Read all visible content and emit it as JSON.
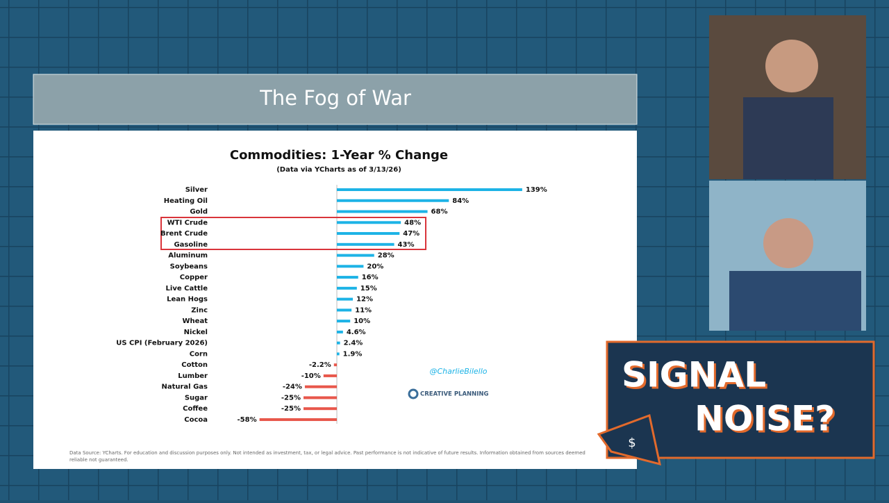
{
  "header": {
    "title": "The Fog of War"
  },
  "chart_data": {
    "type": "bar",
    "orientation": "horizontal",
    "title": "Commodities: 1-Year % Change",
    "subtitle": "(Data via YCharts as of 3/13/26)",
    "categories": [
      "Silver",
      "Heating Oil",
      "Gold",
      "WTI Crude",
      "Brent Crude",
      "Gasoline",
      "Aluminum",
      "Soybeans",
      "Copper",
      "Live Cattle",
      "Lean Hogs",
      "Zinc",
      "Wheat",
      "Nickel",
      "US CPI (February 2026)",
      "Corn",
      "Cotton",
      "Lumber",
      "Natural Gas",
      "Sugar",
      "Coffee",
      "Cocoa"
    ],
    "values": [
      139,
      84,
      68,
      48,
      47,
      43,
      28,
      20,
      16,
      15,
      12,
      11,
      10,
      4.6,
      2.4,
      1.9,
      -2.2,
      -10,
      -24,
      -25,
      -25,
      -58
    ],
    "value_labels": [
      "139%",
      "84%",
      "68%",
      "48%",
      "47%",
      "43%",
      "28%",
      "20%",
      "16%",
      "15%",
      "12%",
      "11%",
      "10%",
      "4.6%",
      "2.4%",
      "1.9%",
      "-2.2%",
      "-10%",
      "-24%",
      "-25%",
      "-25%",
      "-58%"
    ],
    "color": "#1db3e6",
    "negative_color": "#e8574b",
    "handle": "@CharlieBilello",
    "brand": "CREATIVE PLANNING",
    "footnote": "Data Source: YCharts. For education and discussion purposes only. Not intended as investment, tax, or legal advice. Past performance is not indicative of future results. Information obtained from sources deemed reliable not guaranteed."
  },
  "show": {
    "line1": "SIGNAL",
    "line2": "NOISE?",
    "icon": "$"
  }
}
